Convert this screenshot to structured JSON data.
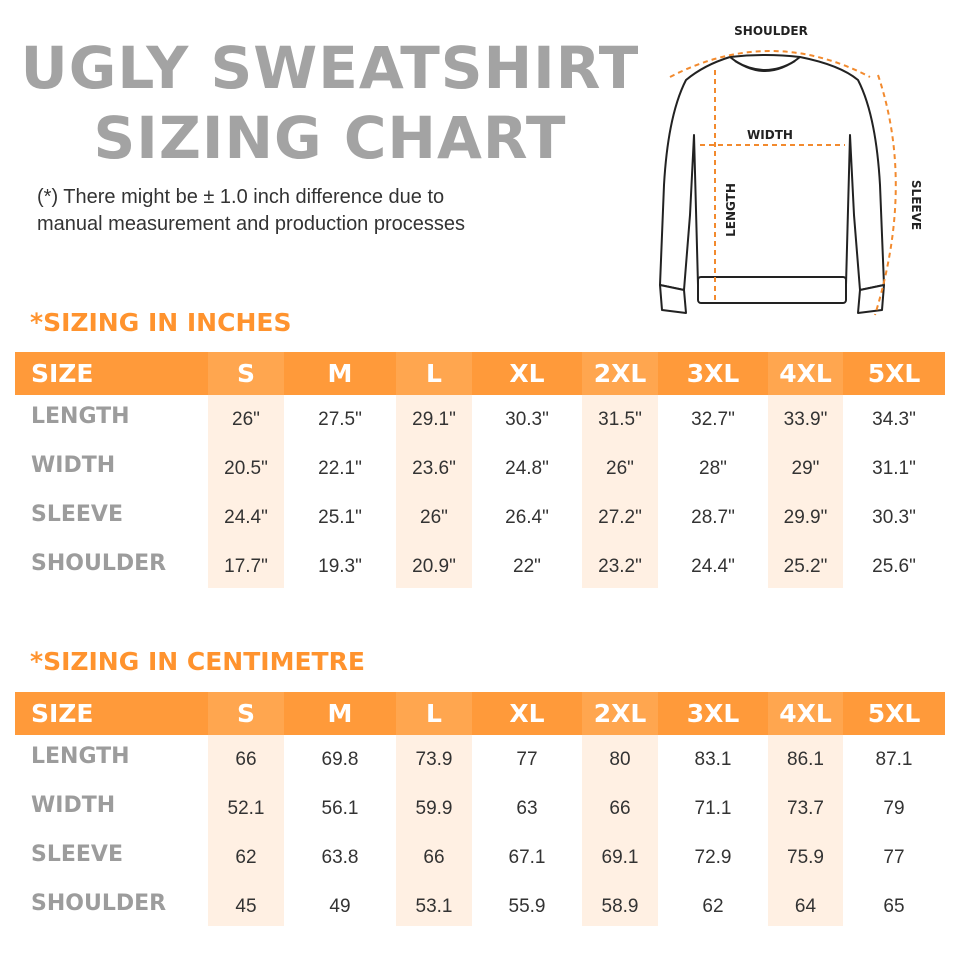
{
  "title_line1": "UGLY SWEATSHIRT",
  "title_line2": "SIZING CHART",
  "note_line1": "(*) There might be ± 1.0 inch difference due to",
  "note_line2": "manual measurement and production processes",
  "diagram": {
    "shoulder": "SHOULDER",
    "width": "WIDTH",
    "length": "LENGTH",
    "sleeve": "SLEEVE"
  },
  "colors": {
    "accent": "#ff9a3a",
    "highlight": "#fff0e3",
    "title_gray": "#a3a3a3"
  },
  "inches": {
    "heading": "*SIZING IN INCHES",
    "header": [
      "SIZE",
      "S",
      "M",
      "L",
      "XL",
      "2XL",
      "3XL",
      "4XL",
      "5XL"
    ],
    "rows": [
      {
        "label": "LENGTH",
        "values": [
          "26\"",
          "27.5\"",
          "29.1\"",
          "30.3\"",
          "31.5\"",
          "32.7\"",
          "33.9\"",
          "34.3\""
        ]
      },
      {
        "label": "WIDTH",
        "values": [
          "20.5\"",
          "22.1\"",
          "23.6\"",
          "24.8\"",
          "26\"",
          "28\"",
          "29\"",
          "31.1\""
        ]
      },
      {
        "label": "SLEEVE",
        "values": [
          "24.4\"",
          "25.1\"",
          "26\"",
          "26.4\"",
          "27.2\"",
          "28.7\"",
          "29.9\"",
          "30.3\""
        ]
      },
      {
        "label": "SHOULDER",
        "values": [
          "17.7\"",
          "19.3\"",
          "20.9\"",
          "22\"",
          "23.2\"",
          "24.4\"",
          "25.2\"",
          "25.6\""
        ]
      }
    ]
  },
  "centimetre": {
    "heading": "*SIZING IN CENTIMETRE",
    "header": [
      "SIZE",
      "S",
      "M",
      "L",
      "XL",
      "2XL",
      "3XL",
      "4XL",
      "5XL"
    ],
    "rows": [
      {
        "label": "LENGTH",
        "values": [
          "66",
          "69.8",
          "73.9",
          "77",
          "80",
          "83.1",
          "86.1",
          "87.1"
        ]
      },
      {
        "label": "WIDTH",
        "values": [
          "52.1",
          "56.1",
          "59.9",
          "63",
          "66",
          "71.1",
          "73.7",
          "79"
        ]
      },
      {
        "label": "SLEEVE",
        "values": [
          "62",
          "63.8",
          "66",
          "67.1",
          "69.1",
          "72.9",
          "75.9",
          "77"
        ]
      },
      {
        "label": "SHOULDER",
        "values": [
          "45",
          "49",
          "53.1",
          "55.9",
          "58.9",
          "62",
          "64",
          "65"
        ]
      }
    ]
  }
}
